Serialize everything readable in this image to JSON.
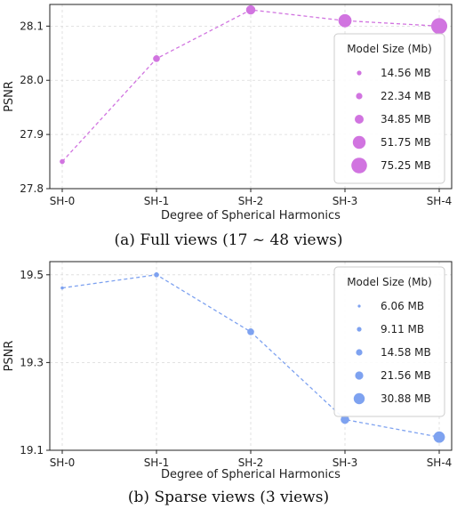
{
  "chart_data": [
    {
      "type": "scatter",
      "caption": "(a) Full views (17 ~ 48 views)",
      "xlabel": "Degree of Spherical Harmonics",
      "ylabel": "PSNR",
      "categories": [
        "SH-0",
        "SH-1",
        "SH-2",
        "SH-3",
        "SH-4"
      ],
      "values": [
        27.85,
        28.04,
        28.13,
        28.11,
        28.1
      ],
      "sizes_mb": [
        14.56,
        22.34,
        34.85,
        51.75,
        75.25
      ],
      "yticks": [
        "27.8",
        "27.9",
        "28.0",
        "28.1"
      ],
      "ylim": [
        27.8,
        28.14
      ],
      "color": "#d174e0",
      "grid": true,
      "legend": {
        "title": "Model Size (Mb)",
        "placement": "right",
        "entries": [
          "14.56 MB",
          "22.34 MB",
          "34.85 MB",
          "51.75 MB",
          "75.25 MB"
        ]
      }
    },
    {
      "type": "scatter",
      "caption": "(b) Sparse views (3 views)",
      "xlabel": "Degree of Spherical Harmonics",
      "ylabel": "PSNR",
      "categories": [
        "SH-0",
        "SH-1",
        "SH-2",
        "SH-3",
        "SH-4"
      ],
      "values": [
        19.47,
        19.5,
        19.37,
        19.17,
        19.13
      ],
      "sizes_mb": [
        6.06,
        9.11,
        14.58,
        21.56,
        30.88
      ],
      "yticks": [
        "19.1",
        "19.3",
        "19.5"
      ],
      "ylim": [
        19.1,
        19.53
      ],
      "color": "#7ea2f0",
      "grid": true,
      "legend": {
        "title": "Model Size (Mb)",
        "placement": "right",
        "entries": [
          "6.06 MB",
          "9.11 MB",
          "14.58 MB",
          "21.56 MB",
          "30.88 MB"
        ]
      }
    }
  ]
}
